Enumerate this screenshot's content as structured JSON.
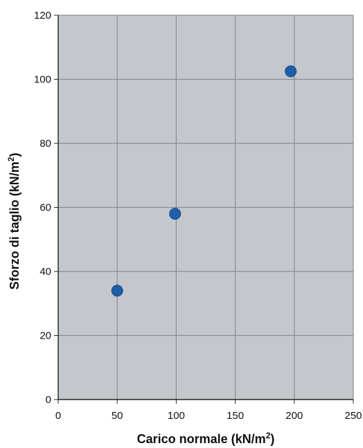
{
  "chart_data": {
    "type": "scatter",
    "x": [
      50,
      99,
      197
    ],
    "y": [
      34,
      58,
      102.5
    ],
    "xlim": [
      0,
      250
    ],
    "ylim": [
      0,
      120
    ],
    "xticks": [
      0,
      50,
      100,
      150,
      200,
      250
    ],
    "yticks": [
      0,
      20,
      40,
      60,
      80,
      100,
      120
    ],
    "xtick_labels": [
      "0",
      "50",
      "100",
      "150",
      "200",
      "250"
    ],
    "ytick_labels": [
      "0",
      "20",
      "40",
      "60",
      "80",
      "100",
      "120"
    ],
    "xlabel": {
      "text": "Carico normale (kN/m",
      "sup": "2",
      "close": ")"
    },
    "ylabel": {
      "text": "Sforzo di taglio (kN/m",
      "sup": "2",
      "close": ")"
    },
    "grid": true,
    "legend": "none",
    "colors": {
      "plot_background": "#c4c7cb",
      "grid": "#8a8d90",
      "axis": "#222222",
      "marker": "#1f5ea8",
      "marker_edge": "#164a88"
    }
  }
}
